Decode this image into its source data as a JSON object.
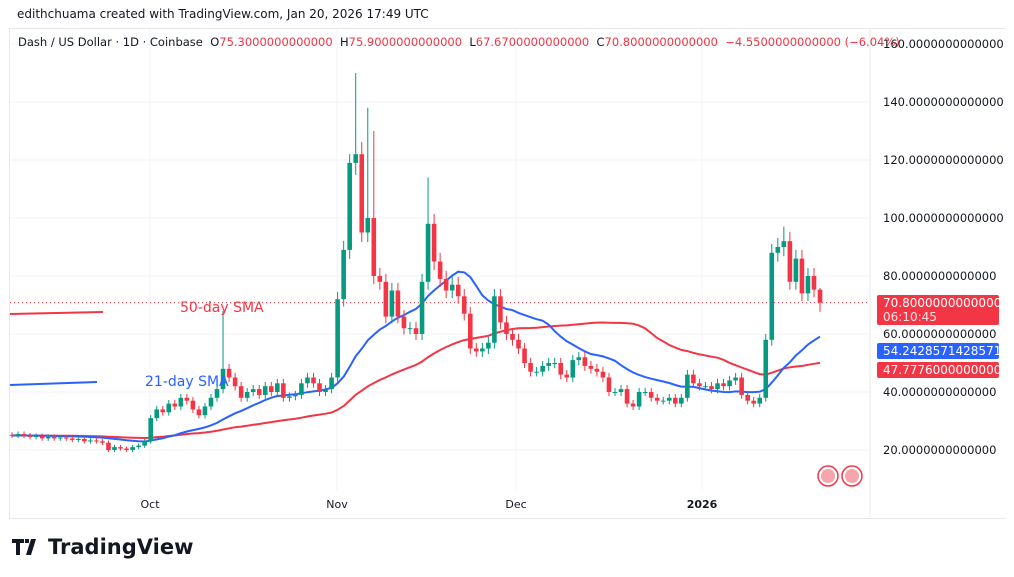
{
  "credit": "edithchuama created with TradingView.com, Jan 20, 2026 17:49 UTC",
  "legend": {
    "symbol": "Dash / US Dollar · 1D · Coinbase",
    "o_label": "O",
    "o": "75.3000000000000",
    "h_label": "H",
    "h": "75.9000000000000",
    "l_label": "L",
    "l": "67.6700000000000",
    "c_label": "C",
    "c": "70.8000000000000",
    "change": "−4.5500000000000 (−6.04%)"
  },
  "price_tags": {
    "last": "70.8000000000000",
    "countdown": "06:10:45",
    "sma21": "54.2428571428571",
    "sma50": "47.7776000000000"
  },
  "annotations": {
    "sma50": "50-day SMA",
    "sma21": "21-day SMA"
  },
  "logo": "TradingView",
  "colors": {
    "up": "#089981",
    "down": "#f23645",
    "sma21": "#2962ff",
    "sma50": "#f23645"
  },
  "chart_data": {
    "type": "candlestick",
    "title": "Dash / US Dollar · 1D · Coinbase",
    "x_start": "2025-09-08",
    "x_end": "2026-01-20",
    "x_ticks": [
      "Oct",
      "Nov",
      "Dec",
      "2026"
    ],
    "y_ticks": [
      "20.0000000000000",
      "40.0000000000000",
      "60.0000000000000",
      "80.0000000000000",
      "100.0000000000000",
      "120.0000000000000",
      "140.0000000000000",
      "160.0000000000000"
    ],
    "ylim": [
      8,
      165
    ],
    "grid": true,
    "close": [
      25,
      25.5,
      25,
      24.5,
      24.8,
      24,
      24.5,
      24,
      24.3,
      24,
      23.5,
      23.8,
      23,
      23.3,
      23,
      22.5,
      20,
      21,
      20.5,
      20,
      21,
      21.5,
      23,
      31,
      34,
      33,
      36,
      35,
      38,
      37,
      34,
      32,
      35,
      38,
      41,
      48,
      45,
      42,
      38,
      40,
      41,
      39,
      42,
      40,
      43,
      38,
      38.5,
      39,
      43,
      45,
      43,
      40,
      41,
      45,
      72,
      89,
      119,
      122,
      95,
      100,
      80,
      78,
      66,
      75,
      66,
      62,
      62,
      60,
      78,
      98,
      85,
      79,
      75,
      77,
      73,
      67,
      55,
      54,
      55,
      57,
      73,
      64,
      60,
      58,
      55,
      50,
      47,
      47,
      49,
      50,
      50,
      46,
      45,
      51,
      52,
      49,
      48,
      47,
      45,
      40,
      40,
      41,
      36,
      35,
      40,
      40,
      38,
      37,
      37,
      38,
      36,
      38,
      46,
      43,
      42,
      42,
      41,
      43,
      42,
      44,
      45,
      39,
      37,
      36,
      38,
      58,
      88,
      90,
      92,
      78,
      86,
      74,
      80,
      75.3,
      70.8
    ],
    "high_peaks": {
      "2025-10-13": 68,
      "2025-11-04": 150,
      "2025-11-03": 122,
      "2025-11-06": 138,
      "2025-11-07": 130,
      "2025-11-16": 114,
      "2026-01-14": 97,
      "2026-01-20": 75.9
    },
    "low_troughs": {
      "2026-01-20": 67.67
    },
    "series": [
      {
        "name": "21-day SMA",
        "last": 54.2428571428571
      },
      {
        "name": "50-day SMA",
        "last": 47.7776
      }
    ]
  }
}
